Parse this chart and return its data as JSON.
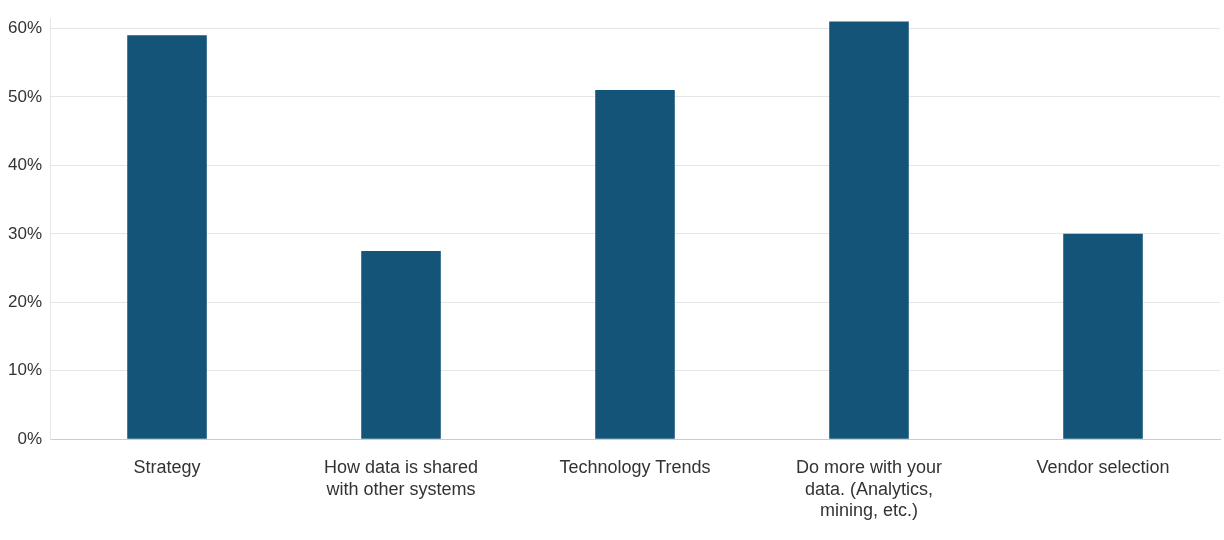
{
  "chart_data": {
    "type": "bar",
    "categories": [
      "Strategy",
      "How data is shared with other systems",
      "Technology Trends",
      "Do more with your data. (Analytics, mining, etc.)",
      "Vendor selection"
    ],
    "values": [
      59,
      27.5,
      51,
      61,
      30
    ],
    "color": "#135478",
    "ylim": [
      0,
      61.5
    ],
    "yticks": [
      {
        "value": 0,
        "label": "0%"
      },
      {
        "value": 10,
        "label": "10%"
      },
      {
        "value": 20,
        "label": "20%"
      },
      {
        "value": 30,
        "label": "30%"
      },
      {
        "value": 40,
        "label": "40%"
      },
      {
        "value": 50,
        "label": "50%"
      },
      {
        "value": 60,
        "label": "60%"
      }
    ],
    "grid": "y",
    "legend": false
  }
}
